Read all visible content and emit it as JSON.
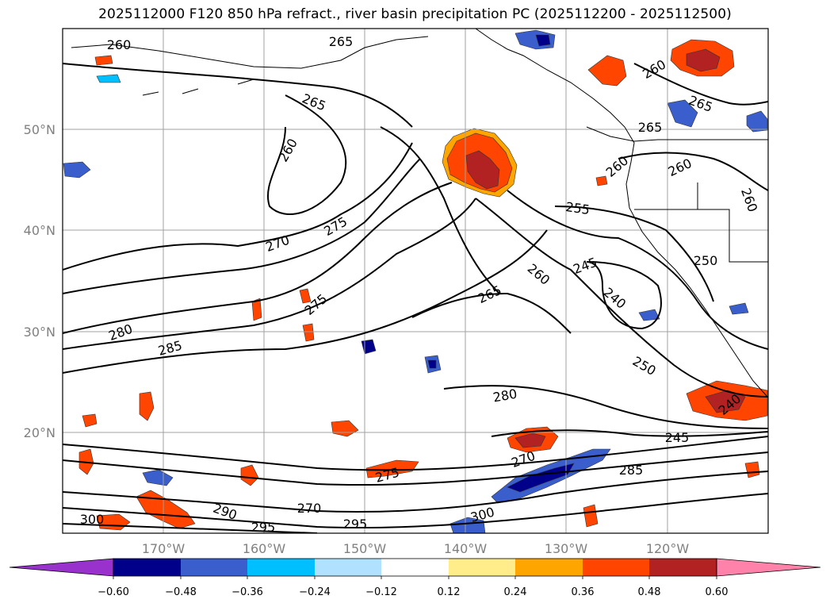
{
  "title": "2025112000 F120 850 hPa refract., river basin precipitation PC (2025112200 - 2025112500)",
  "map": {
    "latitude_labels": [
      "50°N",
      "40°N",
      "30°N",
      "20°N"
    ],
    "longitude_labels": [
      "170°W",
      "160°W",
      "150°W",
      "140°W",
      "130°W",
      "120°W"
    ],
    "contour_labels": [
      "260",
      "265",
      "265",
      "260",
      "270",
      "275",
      "275",
      "280",
      "285",
      "255",
      "245",
      "260",
      "265",
      "240",
      "250",
      "280",
      "270",
      "285",
      "245",
      "240",
      "275",
      "270",
      "295",
      "300",
      "290",
      "295",
      "300",
      "260",
      "265",
      "265",
      "260",
      "250",
      "260",
      "260"
    ]
  },
  "colorbar": {
    "tick_labels": [
      "−0.60",
      "−0.48",
      "−0.36",
      "−0.24",
      "−0.12",
      "0.12",
      "0.24",
      "0.36",
      "0.48",
      "0.60"
    ],
    "colors": [
      "#9932cc",
      "#00008b",
      "#3a5fcd",
      "#00bfff",
      "#b0e2ff",
      "#ffffff",
      "#ffec8b",
      "#ffa500",
      "#ff4500",
      "#b22222",
      "#ff82ab"
    ]
  }
}
